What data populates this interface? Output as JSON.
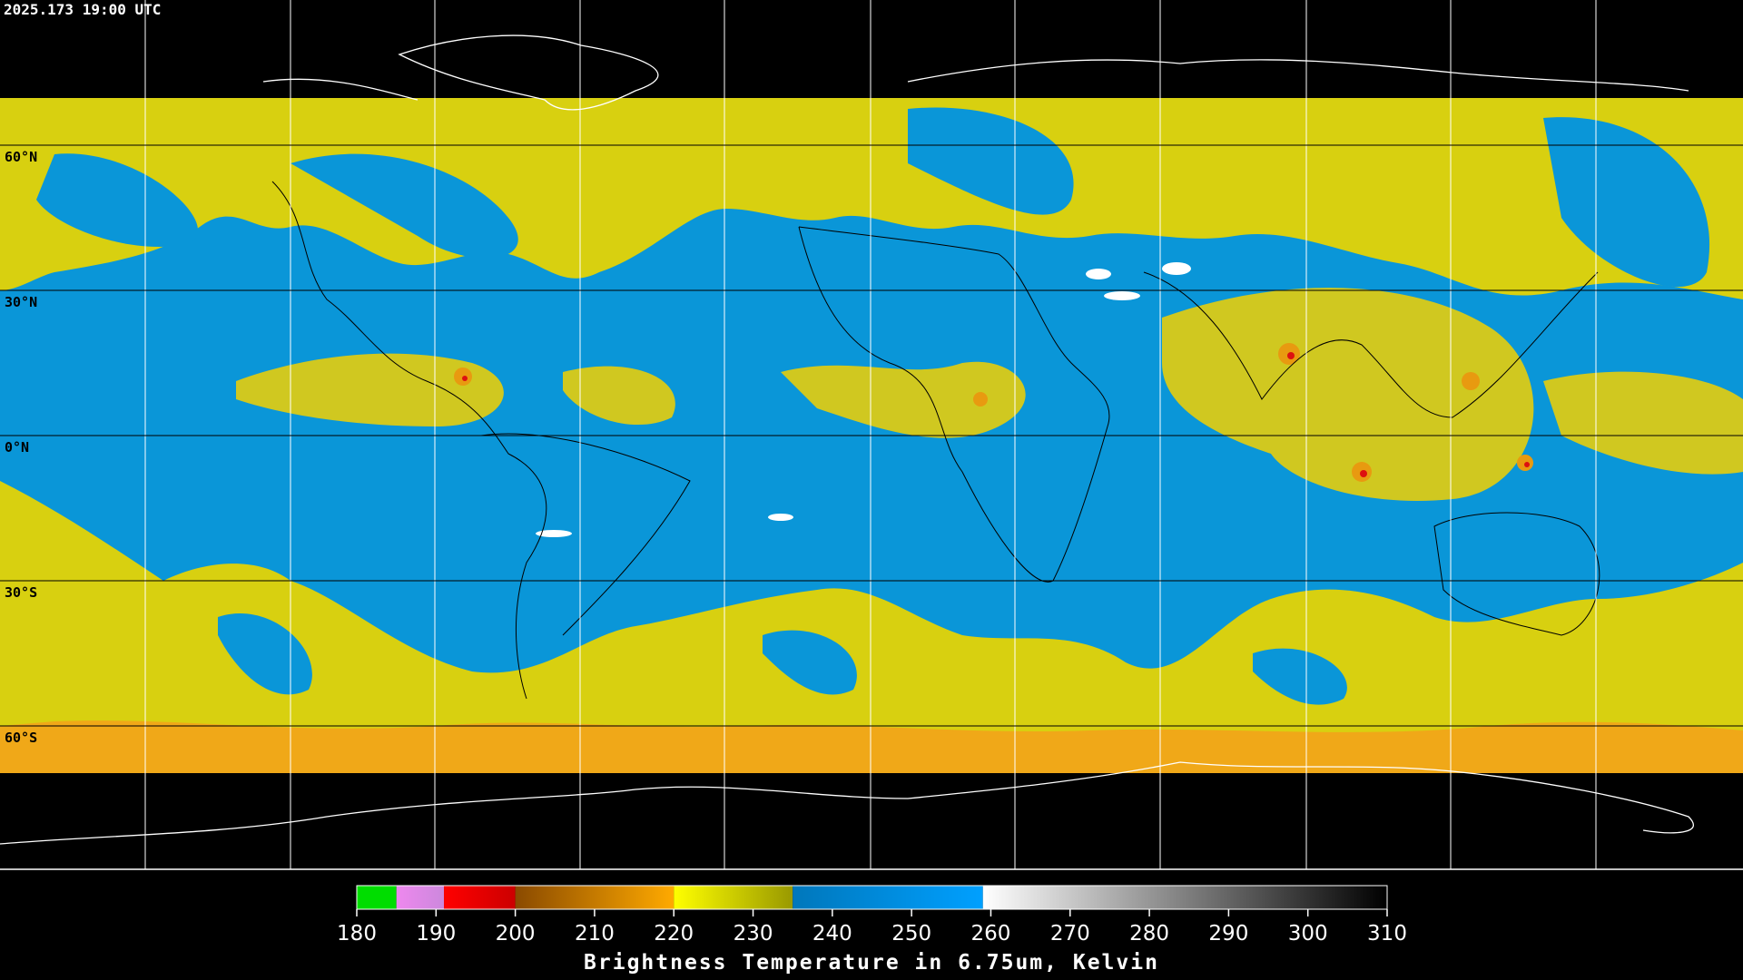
{
  "header": {
    "timestamp": "2025.173 19:00 UTC"
  },
  "map": {
    "lat_labels": [
      "60°N",
      "30°N",
      "0°N",
      "30°S",
      "60°S"
    ]
  },
  "colorbar": {
    "title": "Brightness Temperature in 6.75um, Kelvin",
    "range": [
      180,
      310
    ],
    "ticks": [
      180,
      190,
      200,
      210,
      220,
      230,
      240,
      250,
      260,
      270,
      280,
      290,
      300,
      310
    ],
    "segments": [
      {
        "from": 180,
        "to": 185,
        "start": "#00dd00",
        "end": "#00dd00"
      },
      {
        "from": 185,
        "to": 191,
        "start": "#ee88ee",
        "end": "#cc88dd"
      },
      {
        "from": 191,
        "to": 200,
        "start": "#ff0000",
        "end": "#cc0000"
      },
      {
        "from": 200,
        "to": 220,
        "start": "#8a4a00",
        "end": "#ffaa00"
      },
      {
        "from": 220,
        "to": 235,
        "start": "#ffff00",
        "end": "#999900"
      },
      {
        "from": 235,
        "to": 259,
        "start": "#0077bb",
        "end": "#00a0ff"
      },
      {
        "from": 259,
        "to": 310,
        "start": "#ffffff",
        "end": "#000000"
      }
    ]
  }
}
